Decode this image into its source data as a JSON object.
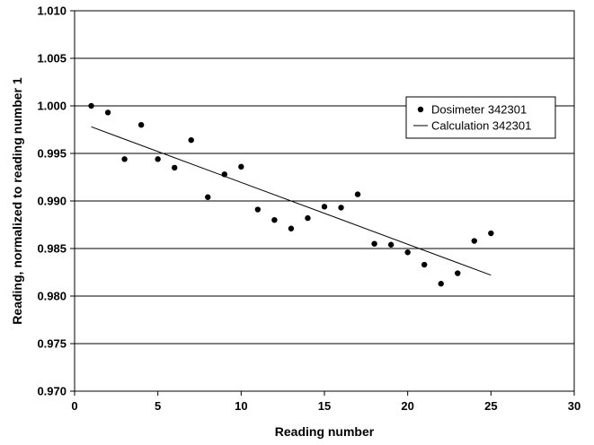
{
  "chart_data": {
    "type": "scatter",
    "xlabel": "Reading number",
    "ylabel": "Reading, normalized to reading number 1",
    "xlim": [
      0,
      30
    ],
    "ylim": [
      0.97,
      1.01
    ],
    "x_ticks": [
      "0",
      "5",
      "10",
      "15",
      "20",
      "25",
      "30"
    ],
    "y_ticks": [
      "0.970",
      "0.975",
      "0.980",
      "0.985",
      "0.990",
      "0.995",
      "1.000",
      "1.005",
      "1.010"
    ],
    "grid": "horizontal",
    "legend_position": "right",
    "series": [
      {
        "name": "Dosimeter 342301",
        "kind": "points",
        "x": [
          1,
          2,
          3,
          4,
          5,
          6,
          7,
          8,
          9,
          10,
          11,
          12,
          13,
          14,
          15,
          16,
          17,
          18,
          19,
          20,
          21,
          22,
          23,
          24,
          25
        ],
        "y": [
          1.0,
          0.9993,
          0.9944,
          0.998,
          0.9944,
          0.9935,
          0.9964,
          0.9904,
          0.9928,
          0.9936,
          0.9891,
          0.988,
          0.9871,
          0.9882,
          0.9894,
          0.9893,
          0.9907,
          0.9855,
          0.9854,
          0.9846,
          0.9833,
          0.9813,
          0.9824,
          0.9858,
          0.9866
        ]
      },
      {
        "name": "Calculation 342301",
        "kind": "line",
        "x": [
          1,
          25
        ],
        "y": [
          0.9978,
          0.9822
        ]
      }
    ]
  }
}
